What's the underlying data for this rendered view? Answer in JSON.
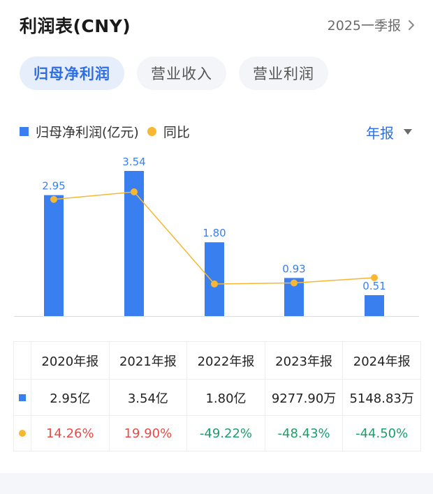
{
  "header": {
    "title": "利润表(CNY)",
    "period_label": "2025一季报"
  },
  "tabs": [
    {
      "label": "归母净利润",
      "active": true
    },
    {
      "label": "营业收入",
      "active": false
    },
    {
      "label": "营业利润",
      "active": false
    }
  ],
  "legend": {
    "bar_label": "归母净利润(亿元)",
    "line_label": "同比"
  },
  "frequency": {
    "label": "年报"
  },
  "colors": {
    "bar": "#3a7ff0",
    "line": "#f7b733",
    "positive": "#e84a4a",
    "negative": "#1f9d6a",
    "accent": "#2d6fe3"
  },
  "chart_data": {
    "type": "bar",
    "categories": [
      "2020年报",
      "2021年报",
      "2022年报",
      "2023年报",
      "2024年报"
    ],
    "series": [
      {
        "name": "归母净利润(亿元)",
        "type": "bar",
        "values": [
          2.95,
          3.54,
          1.8,
          0.93,
          0.51
        ],
        "labels": [
          "2.95",
          "3.54",
          "1.80",
          "0.93",
          "0.51"
        ]
      },
      {
        "name": "同比",
        "type": "line",
        "values": [
          14.26,
          19.9,
          -49.22,
          -48.43,
          -44.5
        ]
      }
    ]
  },
  "table": {
    "headers": [
      "2020年报",
      "2021年报",
      "2022年报",
      "2023年报",
      "2024年报"
    ],
    "profit_row": [
      "2.95亿",
      "3.54亿",
      "1.80亿",
      "9277.90万",
      "5148.83万"
    ],
    "yoy_row": [
      "14.26%",
      "19.90%",
      "-49.22%",
      "-48.43%",
      "-44.50%"
    ]
  }
}
